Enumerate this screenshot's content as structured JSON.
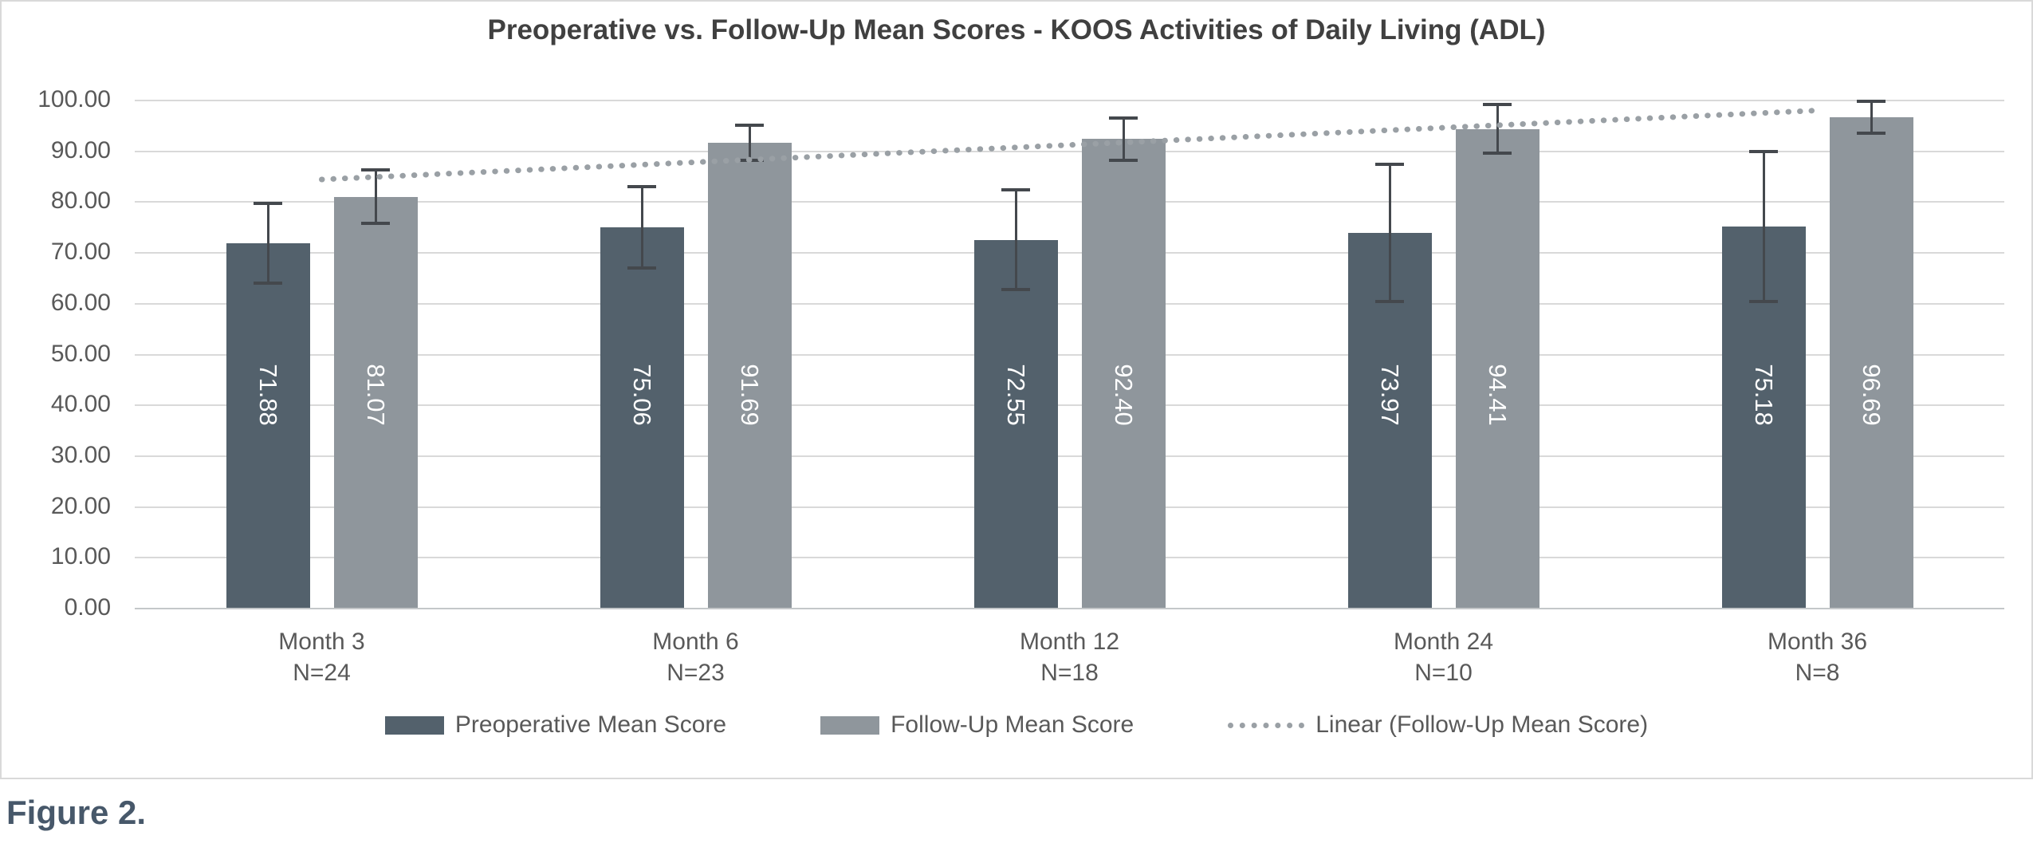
{
  "figure_caption": "Figure 2.",
  "chart_data": {
    "type": "bar",
    "title": "Preoperative vs. Follow-Up Mean Scores - KOOS Activities of Daily Living (ADL)",
    "categories": [
      {
        "label": "Month 3",
        "sublabel": "N=24"
      },
      {
        "label": "Month 6",
        "sublabel": "N=23"
      },
      {
        "label": "Month 12",
        "sublabel": "N=18"
      },
      {
        "label": "Month 24",
        "sublabel": "N=10"
      },
      {
        "label": "Month 36",
        "sublabel": "N=8"
      }
    ],
    "series": [
      {
        "name": "Preoperative Mean Score",
        "color": "#53616c",
        "values": [
          71.88,
          75.06,
          72.55,
          73.97,
          75.18
        ],
        "error_bars": [
          7.85,
          8.0,
          9.8,
          13.5,
          14.7
        ]
      },
      {
        "name": "Follow-Up Mean Score",
        "color": "#8f969c",
        "values": [
          81.07,
          91.69,
          92.4,
          94.41,
          96.69
        ],
        "error_bars": [
          5.2,
          3.4,
          4.1,
          4.8,
          3.2
        ]
      }
    ],
    "trendline": {
      "name": "Linear (Follow-Up Mean Score)",
      "applies_to": "Follow-Up Mean Score",
      "start_value": 84.46,
      "end_value": 98.04,
      "style": "dotted",
      "color": "#9aa0a5"
    },
    "y_axis": {
      "min": 0,
      "max": 100,
      "step": 10,
      "tick_labels": [
        "100.00",
        "90.00",
        "80.00",
        "70.00",
        "60.00",
        "50.00",
        "40.00",
        "30.00",
        "20.00",
        "10.00",
        "0.00"
      ]
    },
    "grid": true,
    "legend_position": "bottom",
    "data_labels": "inside, rotated vertical, 2 decimals, white"
  },
  "colors": {
    "grid": "#d9d9d9",
    "axis_line": "#c4c7c9",
    "text": "#595959",
    "title": "#404040",
    "error_bar": "#44484d",
    "caption": "#47586a",
    "chart_border": "#d9d9d9"
  }
}
